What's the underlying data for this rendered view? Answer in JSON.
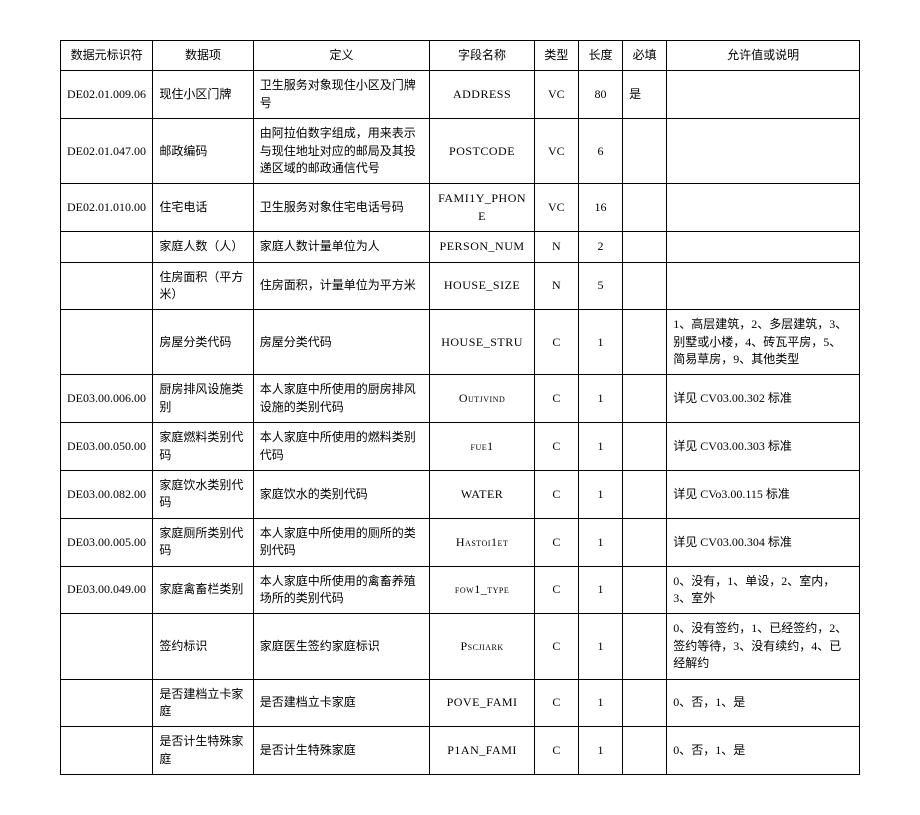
{
  "table": {
    "columns": [
      "数据元标识符",
      "数据项",
      "定义",
      "字段名称",
      "类型",
      "长度",
      "必填",
      "允许值或说明"
    ],
    "col_classes": [
      "col-id",
      "col-item",
      "col-def",
      "col-field",
      "col-type",
      "col-len",
      "col-req",
      "col-allow"
    ],
    "rows": [
      [
        "DE02.01.009.06",
        "现住小区门牌",
        "卫生服务对象现住小区及门牌号",
        "ADDRESS",
        "VC",
        "80",
        "是",
        ""
      ],
      [
        "DE02.01.047.00",
        "邮政编码",
        "由阿拉伯数字组成，用来表示与现住地址对应的邮局及其投递区域的邮政通信代号",
        "POSTCODE",
        "VC",
        "6",
        "",
        ""
      ],
      [
        "DE02.01.010.00",
        "住宅电话",
        "卫生服务对象住宅电话号码",
        "FAMI1Y_PHONE",
        "VC",
        "16",
        "",
        ""
      ],
      [
        "",
        "家庭人数（人）",
        "家庭人数计量单位为人",
        "PERSON_NUM",
        "N",
        "2",
        "",
        ""
      ],
      [
        "",
        "住房面积（平方米）",
        "住房面积，计量单位为平方米",
        "HOUSE_SIZE",
        "N",
        "5",
        "",
        ""
      ],
      [
        "",
        "房屋分类代码",
        "房屋分类代码",
        "HOUSE_STRU",
        "C",
        "1",
        "",
        "1、高层建筑，2、多层建筑，3、别墅或小楼，4、砖瓦平房，5、简易草房，9、其他类型"
      ],
      [
        "DE03.00.006.00",
        "厨房排风设施类别",
        "本人家庭中所使用的厨房排风设施的类别代码",
        "Outjvind",
        "C",
        "1",
        "",
        "详见 CV03.00.302 标准"
      ],
      [
        "DE03.00.050.00",
        "家庭燃料类别代码",
        "本人家庭中所使用的燃料类别代码",
        "fue1",
        "C",
        "1",
        "",
        "详见 CV03.00.303 标准"
      ],
      [
        "DE03.00.082.00",
        "家庭饮水类别代码",
        "家庭饮水的类别代码",
        "WATER",
        "C",
        "1",
        "",
        "详见 CVo3.00.115 标准"
      ],
      [
        "DE03.00.005.00",
        "家庭厕所类别代码",
        "本人家庭中所使用的厕所的类别代码",
        "Hastoi1et",
        "C",
        "1",
        "",
        "详见 CV03.00.304 标准"
      ],
      [
        "DE03.00.049.00",
        "家庭禽畜栏类别",
        "本人家庭中所使用的禽畜养殖场所的类别代码",
        "fow1_type",
        "C",
        "1",
        "",
        "0、没有，1、单设，2、室内，3、室外"
      ],
      [
        "",
        "签约标识",
        "家庭医生签约家庭标识",
        "Pscjiark",
        "C",
        "1",
        "",
        "0、没有签约，1、已经签约，2、签约等待，3、没有续约，4、已经解约"
      ],
      [
        "",
        "是否建档立卡家庭",
        "是否建档立卡家庭",
        "POVE_FAMI",
        "C",
        "1",
        "",
        "0、否，1、是"
      ],
      [
        "",
        "是否计生特殊家庭",
        "是否计生特殊家庭",
        "P1AN_FAMI",
        "C",
        "1",
        "",
        "0、否，1、是"
      ]
    ]
  }
}
